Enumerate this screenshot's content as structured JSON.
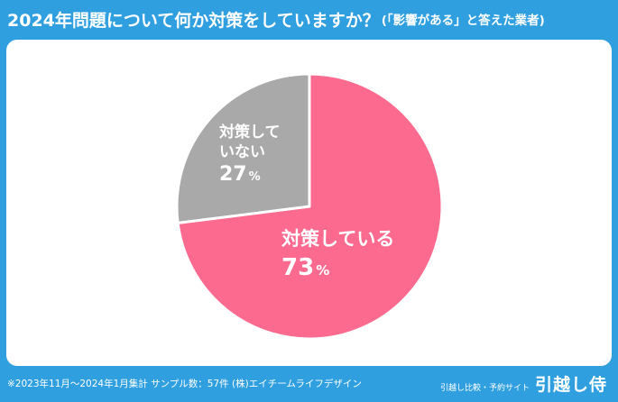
{
  "title": {
    "main": "2024年問題について何か対策をしていますか？",
    "sub": "(「影響がある」と答えた業者)"
  },
  "colors": {
    "background": "#2f9fe0",
    "slice_yes": "#fd6a90",
    "slice_no": "#a9a9a9"
  },
  "chart_data": {
    "type": "pie",
    "slices": [
      {
        "label_line1": "対策している",
        "label_line2": "",
        "value": 73,
        "display": "73",
        "unit": "%",
        "color": "#fd6a90"
      },
      {
        "label_line1": "対策して",
        "label_line2": "いない",
        "value": 27,
        "display": "27",
        "unit": "%",
        "color": "#a9a9a9"
      }
    ],
    "start_angle": "12 o'clock",
    "direction": "clockwise"
  },
  "footer": {
    "note": "※2023年11月～2024年1月集計 サンプル数：57件 (株)エイチームライフデザイン",
    "brand_sub": "引越し比較・予約サイト",
    "brand_name": "引越し侍"
  }
}
